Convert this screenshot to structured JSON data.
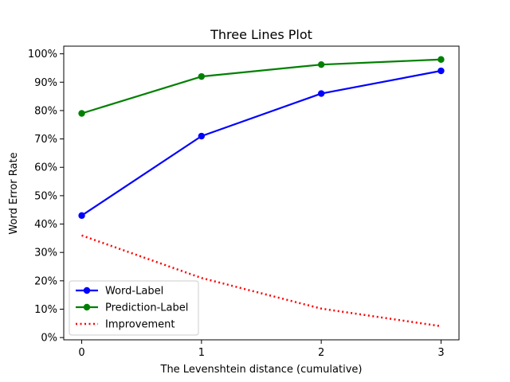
{
  "chart_data": {
    "type": "line",
    "title": "Three Lines Plot",
    "xlabel": "The Levenshtein distance (cumulative)",
    "ylabel": "Word Error Rate",
    "x": [
      0,
      1,
      2,
      3
    ],
    "x_ticks": [
      "0",
      "1",
      "2",
      "3"
    ],
    "xlim": [
      -0.15,
      3.15
    ],
    "ylim": [
      -0.008,
      1.027
    ],
    "y_ticks": [
      0,
      0.1,
      0.2,
      0.3,
      0.4,
      0.5,
      0.6,
      0.7,
      0.8,
      0.9,
      1.0
    ],
    "y_tick_labels": [
      "0%",
      "10%",
      "20%",
      "30%",
      "40%",
      "50%",
      "60%",
      "70%",
      "80%",
      "90%",
      "100%"
    ],
    "grid": false,
    "legend_position": "lower-left",
    "series": [
      {
        "name": "Word-Label",
        "values": [
          0.43,
          0.71,
          0.86,
          0.94
        ],
        "color": "#0000ff",
        "style": "solid",
        "marker": "circle"
      },
      {
        "name": "Prediction-Label",
        "values": [
          0.79,
          0.92,
          0.962,
          0.98
        ],
        "color": "#008000",
        "style": "solid",
        "marker": "circle"
      },
      {
        "name": "Improvement",
        "values": [
          0.36,
          0.21,
          0.102,
          0.04
        ],
        "color": "#ff0000",
        "style": "dotted",
        "marker": "none"
      }
    ]
  }
}
